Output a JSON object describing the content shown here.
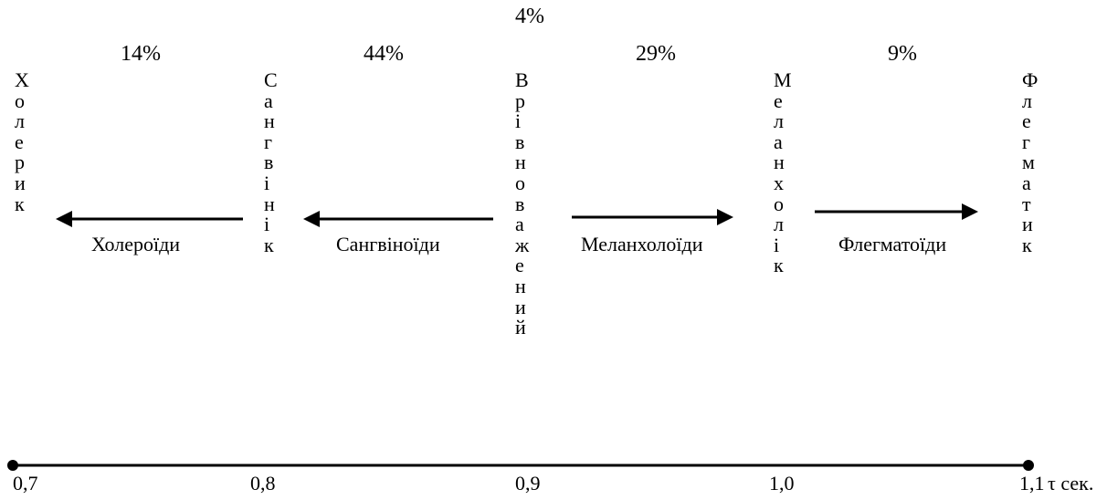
{
  "percentages": {
    "choleric_sanguine": "14%",
    "sanguine_balanced": "44%",
    "balanced": "4%",
    "balanced_melancholic": "29%",
    "melancholic_phlegmatic": "9%"
  },
  "types": {
    "choleric": "Холерик",
    "sanguine": "Сангвінік",
    "balanced": "Врівноважений",
    "melancholic": "Меланхолік",
    "phlegmatic": "Флегматик"
  },
  "groups": {
    "choleroids": "Холероїди",
    "sanguinoids": "Сангвіноїди",
    "melancholoids": "Меланхолоїди",
    "phlegmatoids": "Флегматоїди"
  },
  "axis": {
    "ticks": [
      "0,7",
      "0,8",
      "0,9",
      "1,0",
      "1,1"
    ],
    "unit": "τ сек."
  }
}
